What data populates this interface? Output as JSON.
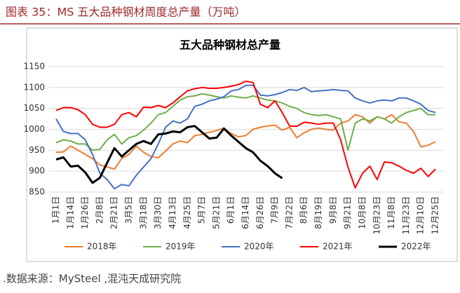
{
  "header": "图表 35：MS 五大品种钢材周度总产量（万吨）",
  "source": ".数据来源：MySteel ,混沌天成研究院",
  "chart_data": {
    "type": "line",
    "title": "五大品种钢材总产量",
    "categories": [
      "1月1日",
      null,
      "1月14日",
      null,
      "1月26日",
      null,
      "2月8日",
      null,
      "2月21日",
      null,
      "3月5日",
      null,
      "3月18日",
      null,
      "3月30日",
      null,
      "4月13日",
      null,
      "4月25日",
      null,
      "5月7日",
      null,
      "5月21日",
      null,
      "6月1日",
      null,
      "6月14日",
      null,
      "6月26日",
      null,
      "7月9日",
      null,
      "7月22日",
      null,
      "8月6日",
      null,
      "8月19日",
      null,
      "9月8日",
      null,
      "9月21日",
      null,
      "10月8日",
      null,
      "10月23日",
      null,
      "11月8日",
      null,
      "11月23日",
      null,
      "12月10日",
      null,
      "12月25日"
    ],
    "series": [
      {
        "name": "2018年",
        "color": "#ed7d31",
        "values": [
          945,
          946,
          960,
          950,
          940,
          930,
          915,
          910,
          905,
          930,
          940,
          960,
          945,
          935,
          932,
          948,
          965,
          972,
          968,
          985,
          988,
          993,
          997,
          1003,
          990,
          982,
          985,
          1000,
          1005,
          1008,
          1010,
          998,
          1005,
          980,
          992,
          1000,
          1003,
          1000,
          998,
          1015,
          1020,
          1035,
          1030,
          1015,
          1030,
          1025,
          1035,
          1018,
          1015,
          995,
          958,
          962,
          970
        ]
      },
      {
        "name": "2019年",
        "color": "#70ad47",
        "values": [
          968,
          975,
          972,
          965,
          965,
          950,
          952,
          975,
          988,
          965,
          980,
          985,
          998,
          1015,
          1035,
          1040,
          1055,
          1070,
          1078,
          1080,
          1085,
          1082,
          1078,
          1075,
          1080,
          1077,
          1075,
          1080,
          1075,
          1070,
          1068,
          1063,
          1055,
          1050,
          1040,
          1035,
          1033,
          1035,
          1030,
          1025,
          950,
          1015,
          1025,
          1020,
          1030,
          1025,
          1015,
          1030,
          1040,
          1045,
          1050,
          1035,
          1035
        ]
      },
      {
        "name": "2020年",
        "color": "#4472c4",
        "values": [
          1025,
          995,
          990,
          990,
          975,
          940,
          895,
          880,
          858,
          868,
          865,
          890,
          910,
          930,
          965,
          1005,
          1020,
          1015,
          1025,
          1055,
          1060,
          1068,
          1072,
          1078,
          1092,
          1095,
          1105,
          1105,
          1082,
          1080,
          1083,
          1088,
          1095,
          1093,
          1100,
          1090,
          1092,
          1093,
          1095,
          1093,
          1092,
          1075,
          1068,
          1063,
          1068,
          1070,
          1068,
          1075,
          1075,
          1068,
          1060,
          1045,
          1040
        ]
      },
      {
        "name": "2021年",
        "color": "#ff0000",
        "values": [
          1045,
          1052,
          1052,
          1047,
          1035,
          1012,
          1005,
          1005,
          1012,
          1035,
          1040,
          1030,
          1053,
          1052,
          1057,
          1052,
          1063,
          1078,
          1092,
          1097,
          1100,
          1098,
          1098,
          1100,
          1103,
          1107,
          1115,
          1112,
          1060,
          1052,
          1068,
          1040,
          1008,
          1007,
          1017,
          1015,
          1012,
          1015,
          1015,
          975,
          910,
          860,
          895,
          912,
          880,
          922,
          920,
          912,
          902,
          895,
          907,
          887,
          905
        ]
      },
      {
        "name": "2022年",
        "color": "#000000",
        "values": [
          928,
          933,
          911,
          913,
          897,
          872,
          884,
          920,
          955,
          935,
          950,
          965,
          972,
          965,
          988,
          990,
          995,
          993,
          1005,
          1008,
          993,
          978,
          980,
          1002,
          985,
          970,
          955,
          945,
          925,
          912,
          895,
          883,
          null,
          null,
          null,
          null,
          null,
          null,
          null,
          null,
          null,
          null,
          null,
          null,
          null,
          null,
          null,
          null,
          null,
          null,
          null,
          null,
          null
        ]
      }
    ],
    "ylim": [
      850,
      1150
    ],
    "yticks": [
      850,
      900,
      950,
      1000,
      1050,
      1100,
      1150
    ],
    "grid": true,
    "legend": "bottom"
  }
}
